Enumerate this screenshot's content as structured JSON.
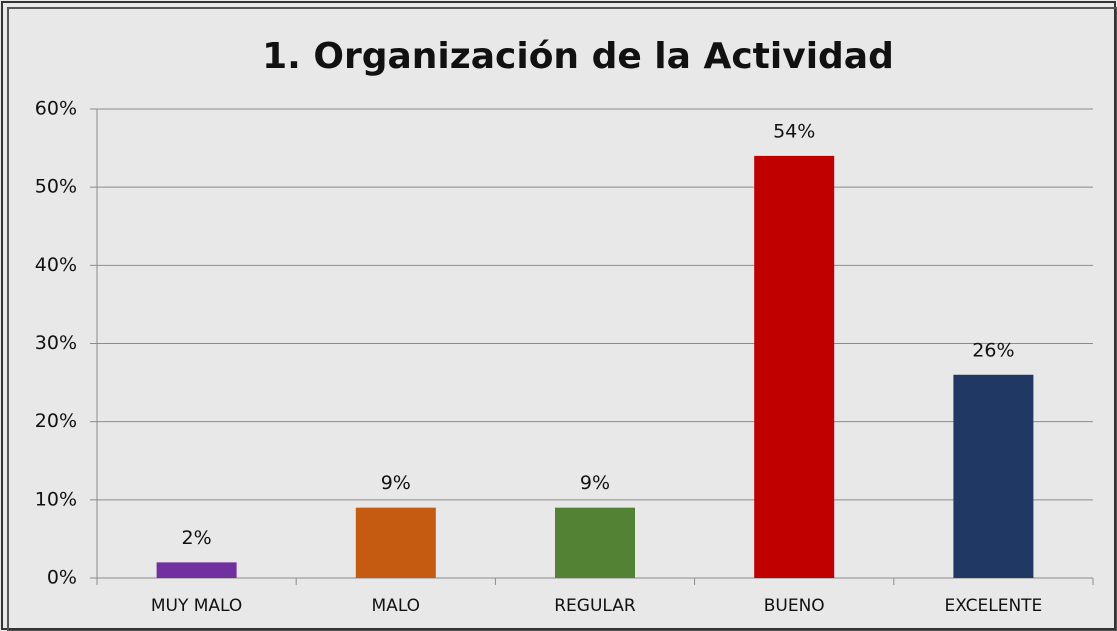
{
  "chart_data": {
    "type": "bar",
    "title": "1. Organización de la Actividad",
    "categories": [
      "MUY MALO",
      "MALO",
      "REGULAR",
      "BUENO",
      "EXCELENTE"
    ],
    "values": [
      2,
      9,
      9,
      54,
      26
    ],
    "value_labels": [
      "2%",
      "9%",
      "9%",
      "54%",
      "26%"
    ],
    "colors": [
      "#7030a0",
      "#c55a11",
      "#548235",
      "#c00000",
      "#1f3864"
    ],
    "ylim": [
      0,
      60
    ],
    "yticks": [
      {
        "value": 0,
        "label": "0%"
      },
      {
        "value": 10,
        "label": "10%"
      },
      {
        "value": 20,
        "label": "20%"
      },
      {
        "value": 30,
        "label": "30%"
      },
      {
        "value": 40,
        "label": "40%"
      },
      {
        "value": 50,
        "label": "50%"
      },
      {
        "value": 60,
        "label": "60%"
      }
    ],
    "grid": true
  }
}
